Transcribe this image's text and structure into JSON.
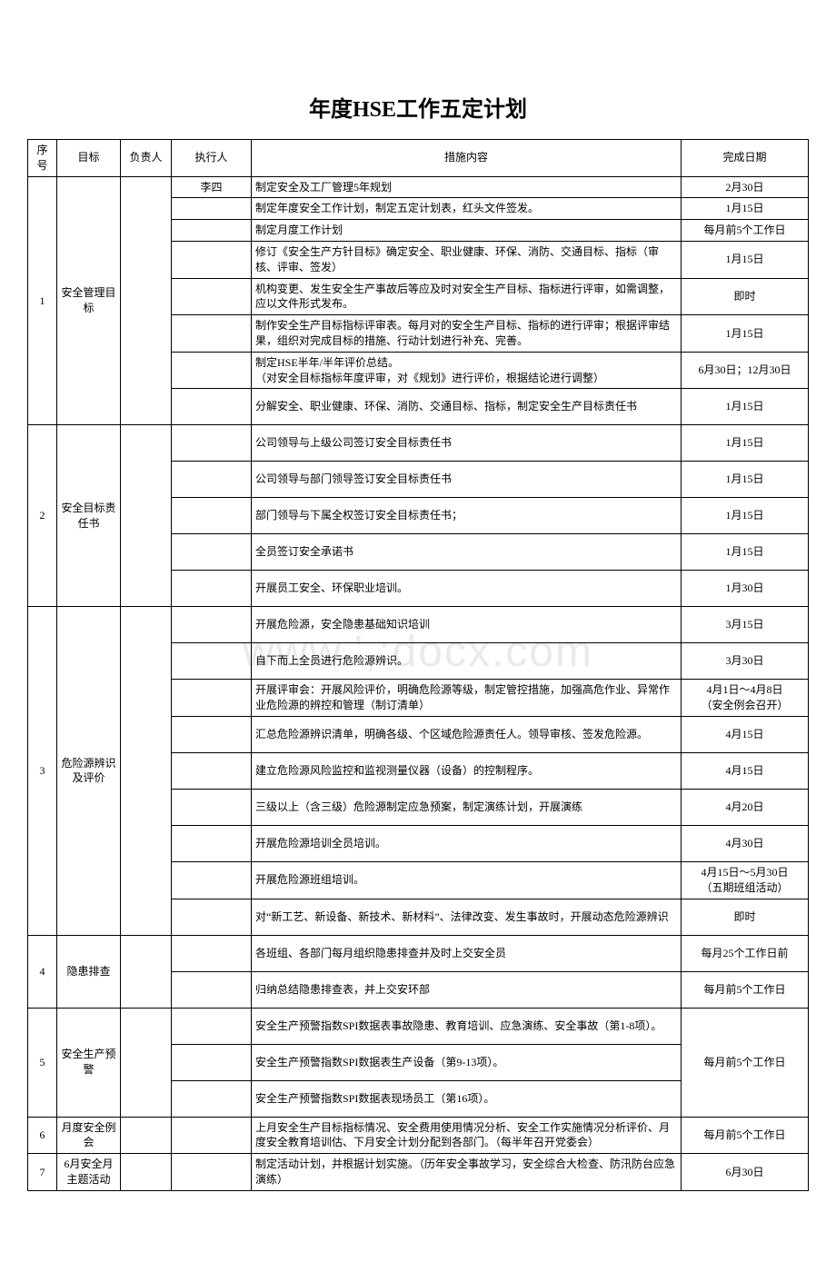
{
  "title": "年度HSE工作五定计划",
  "watermark": "www.',:docx.com",
  "columns": {
    "seq": "序号",
    "goal": "目标",
    "responsible": "负责人",
    "executor": "执行人",
    "measure": "措施内容",
    "date": "完成日期"
  },
  "groups": [
    {
      "seq": "1",
      "goal": "安全管理目标",
      "responsible": "",
      "executor_first": "李四",
      "rows": [
        {
          "measure": "制定安全及工厂管理5年规划",
          "date": "2月30日",
          "h": "short"
        },
        {
          "measure": "制定年度安全工作计划，制定五定计划表，红头文件签发。",
          "date": "1月15日",
          "h": "short"
        },
        {
          "measure": "制定月度工作计划",
          "date": "每月前5个工作日",
          "h": "short"
        },
        {
          "measure": "修订《安全生产方针目标》确定安全、职业健康、环保、消防、交通目标、指标（审核、评审、签发）",
          "date": "1月15日",
          "h": "tall"
        },
        {
          "measure": "机构变更、发生安全生产事故后等应及时对安全生产目标、指标进行评审，如需调整，应以文件形式发布。",
          "date": "即时",
          "h": "tall"
        },
        {
          "measure": "制作安全生产目标指标评审表。每月对的安全生产目标、指标的进行评审；根据评审结果，组织对完成目标的措施、行动计划进行补充、完善。",
          "date": "1月15日",
          "h": "tall"
        },
        {
          "measure": "制定HSE半年/半年评价总结。\n（对安全目标指标年度评审，对《规划》进行评价，根据结论进行调整）",
          "date": "6月30日；12月30日",
          "h": "tall"
        },
        {
          "measure": "分解安全、职业健康、环保、消防、交通目标、指标，制定安全生产目标责任书",
          "date": "1月15日",
          "h": "tall"
        }
      ]
    },
    {
      "seq": "2",
      "goal": "安全目标责任书",
      "responsible": "",
      "executor_first": "",
      "rows": [
        {
          "measure": "公司领导与上级公司签订安全目标责任书",
          "date": "1月15日",
          "h": "tall"
        },
        {
          "measure": "公司领导与部门领导签订安全目标责任书",
          "date": "1月15日",
          "h": "tall"
        },
        {
          "measure": "部门领导与下属全权签订安全目标责任书；",
          "date": "1月15日",
          "h": "tall"
        },
        {
          "measure": "全员签订安全承诺书",
          "date": "1月15日",
          "h": "tall"
        },
        {
          "measure": "开展员工安全、环保职业培训。",
          "date": "1月30日",
          "h": "tall"
        }
      ]
    },
    {
      "seq": "3",
      "goal": "危险源辨识及评价",
      "responsible": "",
      "executor_first": "",
      "rows": [
        {
          "measure": "开展危险源，安全隐患基础知识培训",
          "date": "3月15日",
          "h": "tall"
        },
        {
          "measure": "自下而上全员进行危险源辨识。",
          "date": "3月30日",
          "h": "tall"
        },
        {
          "measure": "开展评审会：开展风险评价，明确危险源等级，制定管控措施，加强高危作业、异常作业危险源的辨控和管理（制订清单）",
          "date": "4月1日～4月8日\n（安全例会召开）",
          "h": "tall"
        },
        {
          "measure": "汇总危险源辨识清单，明确各级、个区域危险源责任人。领导审核、签发危险源。",
          "date": "4月15日",
          "h": "tall"
        },
        {
          "measure": "建立危险源风险监控和监视测量仪器（设备）的控制程序。",
          "date": "4月15日",
          "h": "tall"
        },
        {
          "measure": "三级以上（含三级）危险源制定应急预案，制定演练计划，开展演练",
          "date": "4月20日",
          "h": "tall"
        },
        {
          "measure": "开展危险源培训全员培训。",
          "date": "4月30日",
          "h": "tall"
        },
        {
          "measure": "开展危险源班组培训。",
          "date": "4月15日～5月30日\n（五期班组活动）",
          "h": "tall"
        },
        {
          "measure": "对“新工艺、新设备、新技术、新材料”、法律改变、发生事故时，开展动态危险源辨识",
          "date": "即时",
          "h": "tall"
        }
      ]
    },
    {
      "seq": "4",
      "goal": "隐患排查",
      "responsible": "",
      "executor_first": "",
      "rows": [
        {
          "measure": "各班组、各部门每月组织隐患排查并及时上交安全员",
          "date": "每月25个工作日前",
          "h": "tall"
        },
        {
          "measure": "归纳总结隐患排查表，并上交安环部",
          "date": "每月前5个工作日",
          "h": "tall"
        }
      ]
    },
    {
      "seq": "5",
      "goal": "安全生产预警",
      "responsible": "",
      "executor_first": "",
      "merge_date": "每月前5个工作日",
      "rows": [
        {
          "measure": "安全生产预警指数SPI数据表事故隐患、教育培训、应急演练、安全事故（第1-8项）。",
          "date": null,
          "h": "tall"
        },
        {
          "measure": "安全生产预警指数SPI数据表生产设备（第9-13项）。",
          "date": null,
          "h": "tall"
        },
        {
          "measure": "安全生产预警指数SPI数据表现场员工（第16项）。",
          "date": null,
          "h": "tall"
        }
      ]
    },
    {
      "seq": "6",
      "goal": "月度安全例会",
      "responsible": "",
      "executor_first": "",
      "rows": [
        {
          "measure": "上月安全生产目标指标情况、安全费用使用情况分析、安全工作实施情况分析评价、月度安全教育培训估、下月安全计划分配到各部门。（每半年召开党委会）",
          "date": "每月前5个工作日",
          "h": "tall"
        }
      ]
    },
    {
      "seq": "7",
      "goal": "6月安全月主题活动",
      "responsible": "",
      "executor_first": "",
      "rows": [
        {
          "measure": "制定活动计划，并根据计划实施。（历年安全事故学习，安全综合大检查、防汛防台应急演练）",
          "date": "6月30日",
          "h": "tall"
        }
      ]
    }
  ]
}
